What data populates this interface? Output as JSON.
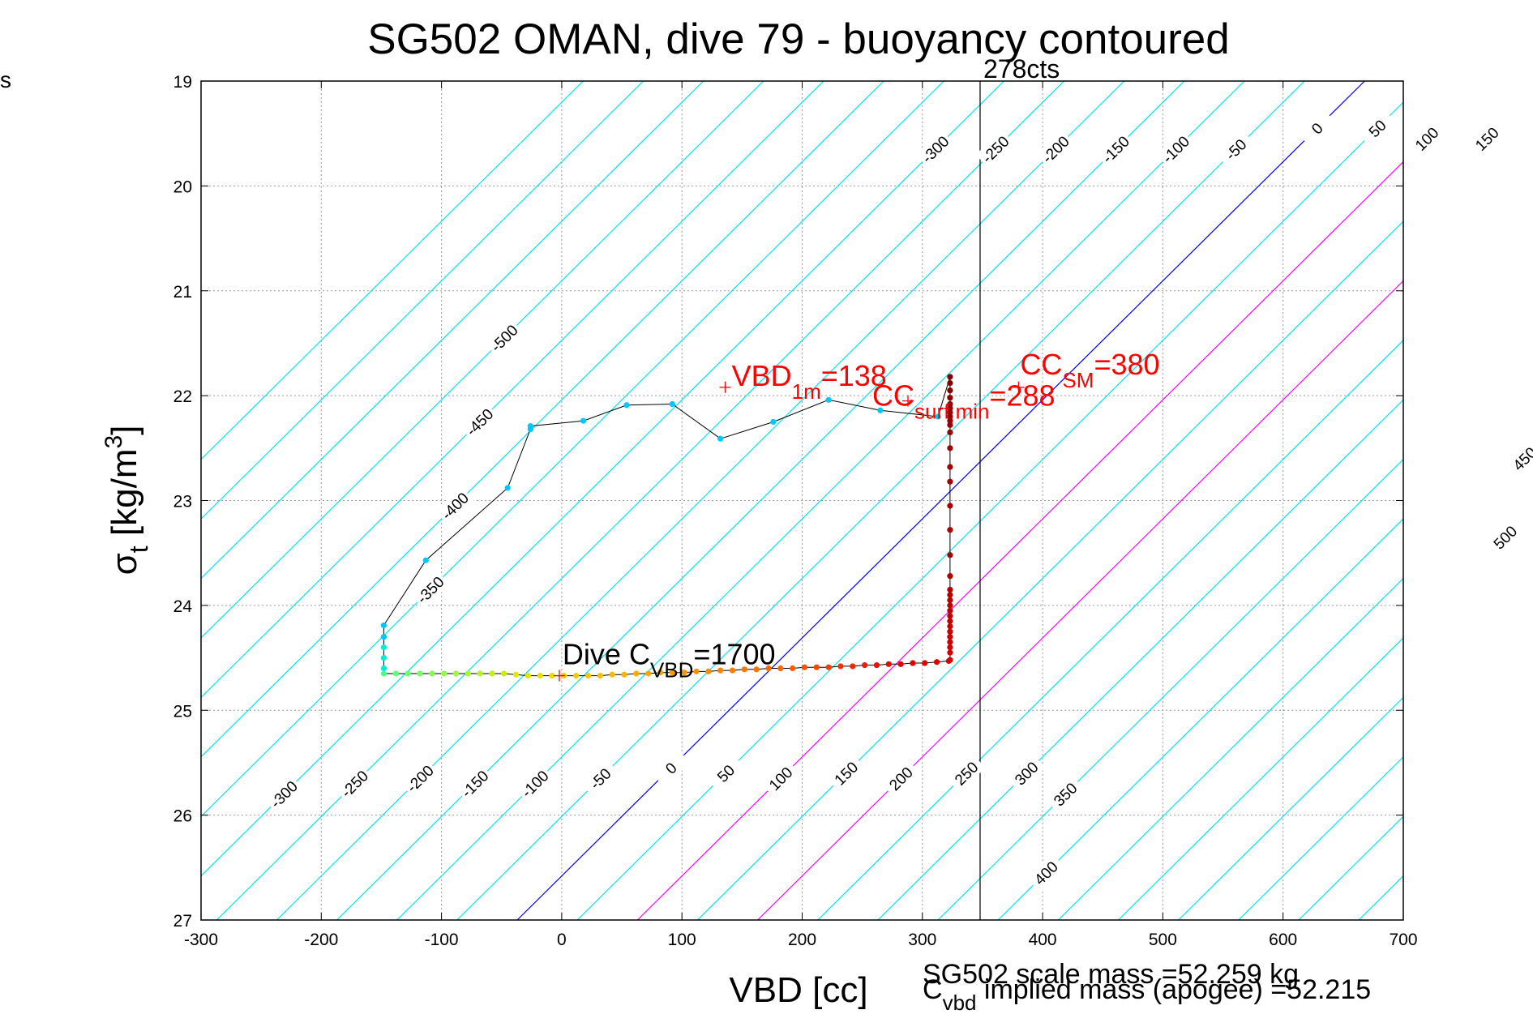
{
  "corner_text": "s",
  "chart_data": {
    "type": "scatter",
    "title": "SG502 OMAN, dive 79 - buoyancy contoured",
    "xlabel": "VBD [cc]",
    "ylabel": {
      "main": "σ",
      "sub": "t",
      "rest": " [kg/m",
      "sup": "3",
      "close": "]"
    },
    "xlim": [
      -300,
      700
    ],
    "ylim": [
      27,
      19
    ],
    "x_ticks": [
      -300,
      -200,
      -100,
      0,
      100,
      200,
      300,
      400,
      500,
      600,
      700
    ],
    "y_ticks": [
      19,
      20,
      21,
      22,
      23,
      24,
      25,
      26,
      27
    ],
    "grid": true,
    "contours": {
      "slope_sigma_per_cc": 0.01135,
      "zero_line_vbd_at_sigma27": -37,
      "levels": [
        -650,
        -600,
        -550,
        -500,
        -450,
        -400,
        -350,
        -300,
        -250,
        -200,
        -150,
        -100,
        -50,
        0,
        50,
        100,
        150,
        200,
        250,
        300,
        350,
        400,
        450,
        500,
        550,
        600,
        650,
        700,
        750
      ],
      "colors": {
        "default": "#00e5ee",
        "zero": "#0000ff",
        "sm_range": "#ff00ff"
      },
      "sm_range_levels": [
        100,
        200
      ],
      "labels_top": [
        {
          "v": -300,
          "y": 19.65
        },
        {
          "v": -250,
          "y": 19.65
        },
        {
          "v": -200,
          "y": 19.65
        },
        {
          "v": -150,
          "y": 19.65
        },
        {
          "v": -100,
          "y": 19.65
        },
        {
          "v": -50,
          "y": 19.65
        },
        {
          "v": 0,
          "y": 19.45
        },
        {
          "v": 50,
          "y": 19.45
        },
        {
          "v": 100,
          "y": 19.55
        },
        {
          "v": 150,
          "y": 19.55
        },
        {
          "v": 200,
          "y": 19.55
        },
        {
          "v": 250,
          "y": 19.55
        },
        {
          "v": 300,
          "y": 19.55
        },
        {
          "v": 350,
          "y": 19.7
        },
        {
          "v": -500,
          "y": 21.45
        },
        {
          "v": -450,
          "y": 22.25
        },
        {
          "v": -400,
          "y": 23.05
        },
        {
          "v": -350,
          "y": 23.85
        },
        {
          "v": 450,
          "y": 22.6
        },
        {
          "v": 500,
          "y": 23.35
        }
      ],
      "labels_bottom": [
        {
          "v": -300,
          "y": 25.8
        },
        {
          "v": -250,
          "y": 25.7
        },
        {
          "v": -200,
          "y": 25.65
        },
        {
          "v": -150,
          "y": 25.7
        },
        {
          "v": -100,
          "y": 25.7
        },
        {
          "v": -50,
          "y": 25.65
        },
        {
          "v": 0,
          "y": 25.55
        },
        {
          "v": 50,
          "y": 25.6
        },
        {
          "v": 100,
          "y": 25.65
        },
        {
          "v": 150,
          "y": 25.6
        },
        {
          "v": 200,
          "y": 25.65
        },
        {
          "v": 250,
          "y": 25.6
        },
        {
          "v": 300,
          "y": 25.6
        },
        {
          "v": 350,
          "y": 25.8
        },
        {
          "v": 400,
          "y": 26.55
        }
      ]
    },
    "vertical_line": {
      "x": 348,
      "label": "278cts"
    },
    "trace": {
      "line_color": "#000000",
      "points": [
        [
          -148,
          24.65
        ],
        [
          -138,
          24.65
        ],
        [
          -128,
          24.65
        ],
        [
          -118,
          24.65
        ],
        [
          -108,
          24.65
        ],
        [
          -98,
          24.65
        ],
        [
          -88,
          24.65
        ],
        [
          -78,
          24.65
        ],
        [
          -68,
          24.65
        ],
        [
          -58,
          24.65
        ],
        [
          -48,
          24.65
        ],
        [
          -38,
          24.66
        ],
        [
          -28,
          24.67
        ],
        [
          -18,
          24.67
        ],
        [
          -8,
          24.67
        ],
        [
          2,
          24.67
        ],
        [
          12,
          24.67
        ],
        [
          22,
          24.67
        ],
        [
          32,
          24.67
        ],
        [
          42,
          24.66
        ],
        [
          52,
          24.66
        ],
        [
          62,
          24.65
        ],
        [
          72,
          24.65
        ],
        [
          82,
          24.64
        ],
        [
          92,
          24.64
        ],
        [
          102,
          24.64
        ],
        [
          112,
          24.63
        ],
        [
          122,
          24.63
        ],
        [
          132,
          24.62
        ],
        [
          142,
          24.62
        ],
        [
          152,
          24.61
        ],
        [
          162,
          24.61
        ],
        [
          172,
          24.6
        ],
        [
          182,
          24.6
        ],
        [
          192,
          24.6
        ],
        [
          202,
          24.59
        ],
        [
          212,
          24.59
        ],
        [
          222,
          24.59
        ],
        [
          232,
          24.58
        ],
        [
          242,
          24.58
        ],
        [
          252,
          24.57
        ],
        [
          262,
          24.57
        ],
        [
          272,
          24.56
        ],
        [
          282,
          24.56
        ],
        [
          292,
          24.55
        ],
        [
          302,
          24.55
        ],
        [
          312,
          24.54
        ],
        [
          322,
          24.53
        ],
        [
          323,
          24.52
        ],
        [
          323,
          24.45
        ],
        [
          323,
          24.4
        ],
        [
          323,
          24.35
        ],
        [
          323,
          24.3
        ],
        [
          323,
          24.25
        ],
        [
          323,
          24.2
        ],
        [
          323,
          24.15
        ],
        [
          323,
          24.1
        ],
        [
          323,
          24.05
        ],
        [
          323,
          24.0
        ],
        [
          323,
          23.95
        ],
        [
          323,
          23.9
        ],
        [
          323,
          23.85
        ],
        [
          323,
          23.72
        ],
        [
          323,
          23.52
        ],
        [
          323,
          23.28
        ],
        [
          323,
          23.05
        ],
        [
          323,
          22.82
        ],
        [
          323,
          22.68
        ],
        [
          323,
          22.5
        ],
        [
          323,
          22.35
        ],
        [
          323,
          22.28
        ],
        [
          323,
          22.24
        ],
        [
          323,
          22.2
        ],
        [
          323,
          22.16
        ],
        [
          323,
          22.12
        ],
        [
          323,
          22.08
        ],
        [
          323,
          22.02
        ],
        [
          323,
          21.95
        ],
        [
          323,
          21.88
        ],
        [
          323,
          21.82
        ],
        [
          313,
          22.2
        ],
        [
          265,
          22.14
        ],
        [
          222,
          22.04
        ],
        [
          176,
          22.25
        ],
        [
          132,
          22.41
        ],
        [
          92,
          22.08
        ],
        [
          54,
          22.09
        ],
        [
          18,
          22.24
        ],
        [
          -26,
          22.29
        ],
        [
          -26,
          22.32
        ],
        [
          -45,
          22.88
        ],
        [
          -113,
          23.57
        ],
        [
          -148,
          24.19
        ],
        [
          -148,
          24.3
        ],
        [
          -148,
          24.4
        ],
        [
          -148,
          24.5
        ],
        [
          -148,
          24.6
        ]
      ]
    },
    "markers": [
      {
        "x": 136,
        "y": 21.92,
        "label": "VBD",
        "sub": "1m",
        "value": "=138"
      },
      {
        "x": 380,
        "y": 21.92,
        "label": "CC",
        "sub": "SM",
        "value": "=380"
      },
      {
        "x": 288,
        "y": 22.05,
        "label": "CC",
        "sub": "surf min",
        "value": "=288"
      },
      {
        "x": -2,
        "y": 24.67,
        "label": "Dive C",
        "sub": "VBD",
        "value": "=1700"
      }
    ],
    "notes": {
      "scale_mass": "SG502 scale mass =52.259 kg",
      "implied_mass": {
        "main": "C",
        "sub": "vbd",
        "rest": " implied mass (apogee) =52.215"
      }
    }
  }
}
